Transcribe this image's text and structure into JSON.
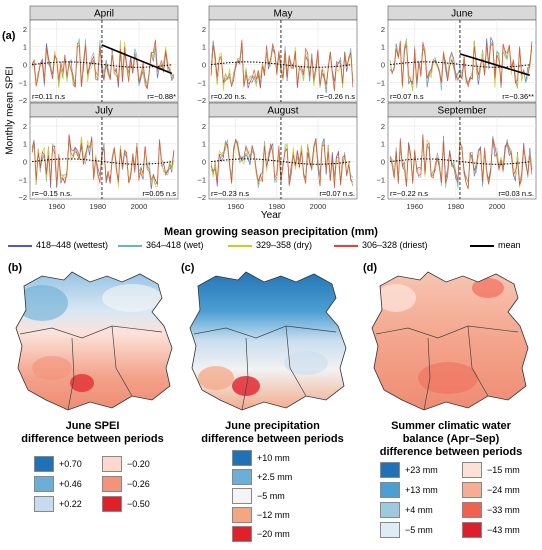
{
  "figure": {
    "panel_a_label": "(a)",
    "panel_b_label": "(b)",
    "panel_c_label": "(c)",
    "panel_d_label": "(d)",
    "y_axis_label": "Monthly mean SPEI",
    "x_axis_label": "Year",
    "legend_title": "Mean growing season precipitation (mm)"
  },
  "chart_data": {
    "type": "line",
    "xlim": [
      1947,
      2019
    ],
    "ylim": [
      -2.1,
      2.5
    ],
    "yticks": [
      -2,
      -1,
      0,
      1,
      2
    ],
    "xticks": [
      1960,
      1980,
      2000,
      2020
    ],
    "break_year": 1982,
    "legend": [
      {
        "name": "418–448 (wettest)",
        "color": "#5555cc"
      },
      {
        "name": "364–418 (wet)",
        "color": "#6bb8b0"
      },
      {
        "name": "329–358 (dry)",
        "color": "#cccc22"
      },
      {
        "name": "306–328 (driest)",
        "color": "#e8442e"
      },
      {
        "name": "mean",
        "color": "#000000"
      }
    ],
    "panels": [
      {
        "month": "April",
        "r_left": "r=0.11 n.s",
        "r_right": "r=−0.88*",
        "late_trend": [
          1.1,
          -0.5
        ]
      },
      {
        "month": "May",
        "r_left": "r=0.20 n.s.",
        "r_right": "r=−0.26 n.s",
        "late_trend": null
      },
      {
        "month": "June",
        "r_left": "r=0.07 n.s",
        "r_right": "r=−0.36**",
        "late_trend": [
          0.6,
          -0.6
        ]
      },
      {
        "month": "July",
        "r_left": "r=−0.15 n.s.",
        "r_right": "r=0.05 n.s",
        "late_trend": null
      },
      {
        "month": "August",
        "r_left": "r=−0.23 n.s",
        "r_right": "r=0.07 n.s.",
        "late_trend": null
      },
      {
        "month": "September",
        "r_left": "r=−0.22 n.s",
        "r_right": "r=0.03 n.s.",
        "late_trend": null
      }
    ]
  },
  "maps": [
    {
      "title_lines": [
        "June SPEI",
        "difference between periods"
      ],
      "legend_left": [
        {
          "label": "+0.70",
          "color": "#2171b5"
        },
        {
          "label": "+0.46",
          "color": "#6baed6"
        },
        {
          "label": "+0.22",
          "color": "#c6dbef"
        }
      ],
      "legend_right": [
        {
          "label": "−0.20",
          "color": "#fcd9cc"
        },
        {
          "label": "−0.26",
          "color": "#f4937a"
        },
        {
          "label": "−0.50",
          "color": "#e0212a"
        }
      ]
    },
    {
      "title_lines": [
        "June precipitation",
        "difference between periods"
      ],
      "legend_left": [
        {
          "label": "+10 mm",
          "color": "#2171b5"
        },
        {
          "label": "+2.5 mm",
          "color": "#6baed6"
        },
        {
          "label": "−5 mm",
          "color": "#f4f4f4"
        },
        {
          "label": "−12 mm",
          "color": "#f4a582"
        },
        {
          "label": "−20 mm",
          "color": "#e0212a"
        }
      ],
      "legend_right": []
    },
    {
      "title_lines": [
        "Summer climatic water",
        "balance (Apr–Sep)",
        "difference between periods"
      ],
      "legend_left": [
        {
          "label": "+23 mm",
          "color": "#2171b5"
        },
        {
          "label": "+13 mm",
          "color": "#4c9fd2"
        },
        {
          "label": "+4 mm",
          "color": "#9ecae1"
        },
        {
          "label": "−5 mm",
          "color": "#ddecf6"
        }
      ],
      "legend_right": [
        {
          "label": "−15 mm",
          "color": "#fde0d6"
        },
        {
          "label": "−24 mm",
          "color": "#f7ad93"
        },
        {
          "label": "−33 mm",
          "color": "#f0614f"
        },
        {
          "label": "−43 mm",
          "color": "#dc1f2c"
        }
      ]
    }
  ]
}
